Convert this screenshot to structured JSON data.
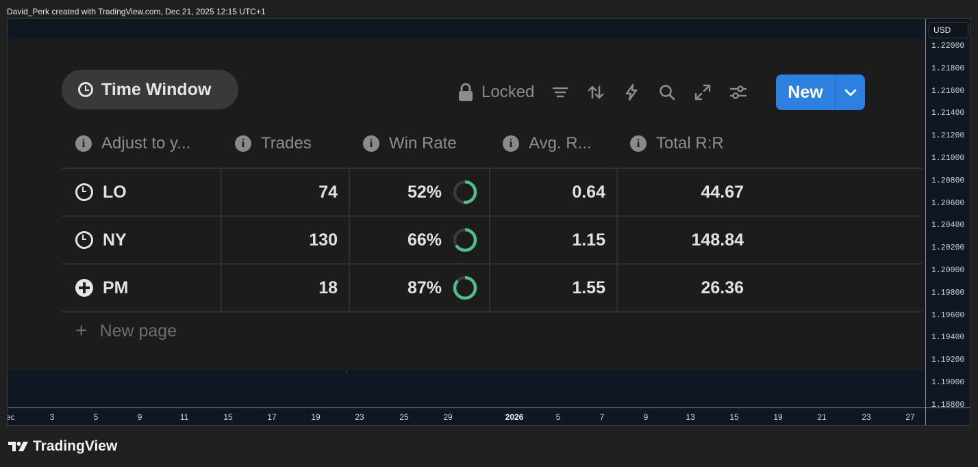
{
  "caption": "David_Perk created with TradingView.com, Dec 21, 2025 12:15 UTC+1",
  "currency": "USD",
  "price_ticks": [
    "1.22000",
    "1.21800",
    "1.21600",
    "1.21400",
    "1.21200",
    "1.21000",
    "1.20800",
    "1.20600",
    "1.20400",
    "1.20200",
    "1.20000",
    "1.19800",
    "1.19600",
    "1.19400",
    "1.19200",
    "1.19000",
    "1.18800"
  ],
  "time_ticks": [
    {
      "label": "ec",
      "year": false
    },
    {
      "label": "3",
      "year": false
    },
    {
      "label": "5",
      "year": false
    },
    {
      "label": "9",
      "year": false
    },
    {
      "label": "11",
      "year": false
    },
    {
      "label": "15",
      "year": false
    },
    {
      "label": "17",
      "year": false
    },
    {
      "label": "19",
      "year": false
    },
    {
      "label": "23",
      "year": false
    },
    {
      "label": "25",
      "year": false
    },
    {
      "label": "29",
      "year": false
    },
    {
      "label": "2026",
      "year": true
    },
    {
      "label": "5",
      "year": false
    },
    {
      "label": "7",
      "year": false
    },
    {
      "label": "9",
      "year": false
    },
    {
      "label": "13",
      "year": false
    },
    {
      "label": "15",
      "year": false
    },
    {
      "label": "19",
      "year": false
    },
    {
      "label": "21",
      "year": false
    },
    {
      "label": "23",
      "year": false
    },
    {
      "label": "27",
      "year": false
    }
  ],
  "view": {
    "title": "Time Window",
    "locked_label": "Locked",
    "new_label": "New",
    "new_page_label": "New page"
  },
  "columns": [
    "Adjust to y...",
    "Trades",
    "Win Rate",
    "Avg. R...",
    "Total R:R"
  ],
  "rows": [
    {
      "icon": "clock-icon",
      "name": "LO",
      "trades": "74",
      "win_rate": "52%",
      "win_fraction": 0.52,
      "avg_r": "0.64",
      "total_rr": "44.67"
    },
    {
      "icon": "clock-icon",
      "name": "NY",
      "trades": "130",
      "win_rate": "66%",
      "win_fraction": 0.66,
      "avg_r": "1.15",
      "total_rr": "148.84"
    },
    {
      "icon": "plus-circle-icon",
      "name": "PM",
      "trades": "18",
      "win_rate": "87%",
      "win_fraction": 0.87,
      "avg_r": "1.55",
      "total_rr": "26.36"
    }
  ],
  "colors": {
    "accent": "#2d7fe0",
    "ring": "#4fbf86",
    "ring_track": "#3a3a3a"
  },
  "brand": "TradingView"
}
